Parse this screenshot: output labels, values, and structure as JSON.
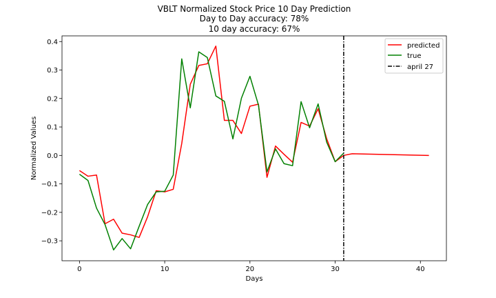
{
  "chart_data": {
    "type": "line",
    "title_lines": [
      "VBLT Normalized Stock Price 10 Day Prediction",
      "Day to Day accuracy: 78%",
      "10 day accuracy: 67%"
    ],
    "xlabel": "Days",
    "ylabel": "Normalized Values",
    "xlim": [
      -2.05,
      43.05
    ],
    "ylim": [
      -0.37,
      0.42
    ],
    "xticks": [
      0,
      10,
      20,
      30,
      40
    ],
    "xtick_labels": [
      "0",
      "10",
      "20",
      "30",
      "40"
    ],
    "yticks": [
      -0.3,
      -0.2,
      -0.1,
      0.0,
      0.1,
      0.2,
      0.3,
      0.4
    ],
    "ytick_labels": [
      "−0.3",
      "−0.2",
      "−0.1",
      "0.0",
      "0.1",
      "0.2",
      "0.3",
      "0.4"
    ],
    "grid": false,
    "legend_position": "top-right",
    "series": [
      {
        "name": "predicted",
        "color": "#ff0000",
        "style": "solid",
        "x": [
          0,
          1,
          2,
          3,
          4,
          5,
          6,
          7,
          8,
          9,
          10,
          11,
          12,
          13,
          14,
          15,
          16,
          17,
          18,
          19,
          20,
          21,
          22,
          23,
          24,
          25,
          26,
          27,
          28,
          29,
          30,
          31,
          32,
          41
        ],
        "y": [
          -0.053,
          -0.073,
          -0.069,
          -0.24,
          -0.224,
          -0.273,
          -0.279,
          -0.288,
          -0.215,
          -0.124,
          -0.128,
          -0.119,
          0.042,
          0.25,
          0.316,
          0.322,
          0.384,
          0.123,
          0.123,
          0.077,
          0.173,
          0.18,
          -0.077,
          0.033,
          0.004,
          -0.024,
          0.116,
          0.103,
          0.164,
          0.059,
          -0.022,
          0.0,
          0.006,
          0.0
        ]
      },
      {
        "name": "true",
        "color": "#008000",
        "style": "solid",
        "x": [
          0,
          1,
          2,
          3,
          4,
          5,
          6,
          7,
          8,
          9,
          10,
          11,
          12,
          13,
          14,
          15,
          16,
          17,
          18,
          19,
          20,
          21,
          22,
          23,
          24,
          25,
          26,
          27,
          28,
          29,
          30,
          31
        ],
        "y": [
          -0.066,
          -0.088,
          -0.185,
          -0.243,
          -0.332,
          -0.292,
          -0.328,
          -0.249,
          -0.172,
          -0.128,
          -0.126,
          -0.069,
          0.339,
          0.167,
          0.364,
          0.344,
          0.209,
          0.19,
          0.058,
          0.201,
          0.278,
          0.177,
          -0.058,
          0.023,
          -0.029,
          -0.036,
          0.189,
          0.097,
          0.181,
          0.047,
          -0.022,
          0.008
        ]
      }
    ],
    "vline": {
      "name": "april 27",
      "x": 31,
      "color": "#000000",
      "style": "dashdot"
    }
  }
}
